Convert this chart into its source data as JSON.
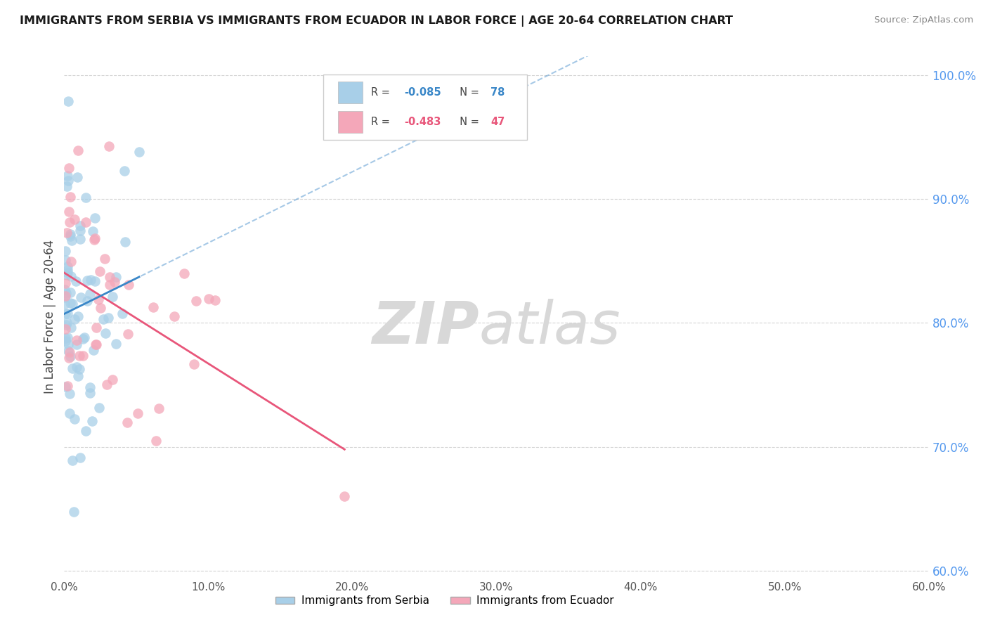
{
  "title": "IMMIGRANTS FROM SERBIA VS IMMIGRANTS FROM ECUADOR IN LABOR FORCE | AGE 20-64 CORRELATION CHART",
  "source": "Source: ZipAtlas.com",
  "ylabel": "In Labor Force | Age 20-64",
  "series": [
    {
      "name": "Immigrants from Serbia",
      "R": -0.085,
      "N": 78,
      "color": "#a8cfe8",
      "line_color": "#3a87c8",
      "dash_color": "#a8cfe8"
    },
    {
      "name": "Immigrants from Ecuador",
      "R": -0.483,
      "N": 47,
      "color": "#f4a7b9",
      "line_color": "#e8567a",
      "dash_color": "#f4a7b9"
    }
  ],
  "xlim": [
    0.0,
    0.6
  ],
  "ylim": [
    0.595,
    1.015
  ],
  "right_yticks": [
    0.6,
    0.7,
    0.8,
    0.9,
    1.0
  ],
  "right_yticklabels": [
    "60.0%",
    "70.0%",
    "80.0%",
    "90.0%",
    "100.0%"
  ],
  "xticks": [
    0.0,
    0.1,
    0.2,
    0.3,
    0.4,
    0.5,
    0.6
  ],
  "xticklabels": [
    "0.0%",
    "10.0%",
    "20.0%",
    "30.0%",
    "40.0%",
    "50.0%",
    "60.0%"
  ],
  "background_color": "#ffffff",
  "grid_color": "#c8c8c8",
  "watermark_zip": "ZIP",
  "watermark_atlas": "atlas",
  "watermark_color": "#d8d8d8"
}
